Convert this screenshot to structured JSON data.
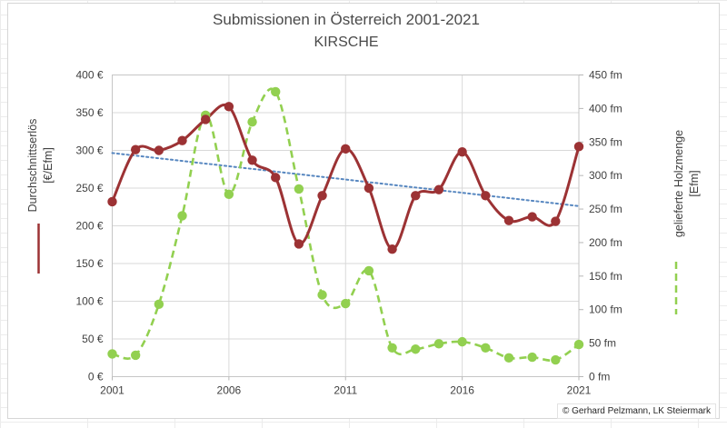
{
  "title": "Submissionen in Österreich 2001-2021",
  "subtitle": "KIRSCHE",
  "footer": "© Gerhard Pelzmann, LK Steiermark",
  "chart_data": {
    "type": "line",
    "x": [
      2001,
      2002,
      2003,
      2004,
      2005,
      2006,
      2007,
      2008,
      2009,
      2010,
      2011,
      2012,
      2013,
      2014,
      2015,
      2016,
      2017,
      2018,
      2019,
      2020,
      2021
    ],
    "x_tick_labels": [
      "2001",
      "2006",
      "2011",
      "2016",
      "2021"
    ],
    "series": [
      {
        "name": "Durchschnittserlös",
        "axis": "left",
        "color": "#9c3234",
        "style": "solid",
        "values": [
          232,
          301,
          300,
          313,
          341,
          358,
          287,
          264,
          176,
          240,
          302,
          250,
          169,
          240,
          248,
          298,
          240,
          207,
          212,
          206,
          305
        ]
      },
      {
        "name": "gelieferte Holzmenge",
        "axis": "right",
        "color": "#92d050",
        "style": "dashed",
        "values": [
          34,
          32,
          108,
          240,
          390,
          272,
          380,
          425,
          280,
          122,
          109,
          158,
          43,
          41,
          49,
          52,
          43,
          28,
          29,
          25,
          48
        ]
      }
    ],
    "trendline": {
      "of_series": "Durchschnittserlös",
      "type": "linear",
      "color": "#4f81bd",
      "style": "dotted"
    },
    "left_axis": {
      "title": "Durchschnittserlös",
      "unit": "[€/Efm]",
      "min": 0,
      "max": 400,
      "step": 50,
      "tick_suffix": " €"
    },
    "right_axis": {
      "title": "gelieferte Holzmenge",
      "unit": "[Efm]",
      "min": 0,
      "max": 450,
      "step": 50,
      "tick_suffix": " fm"
    },
    "grid": true,
    "legend_position": "beside-axis-titles"
  }
}
